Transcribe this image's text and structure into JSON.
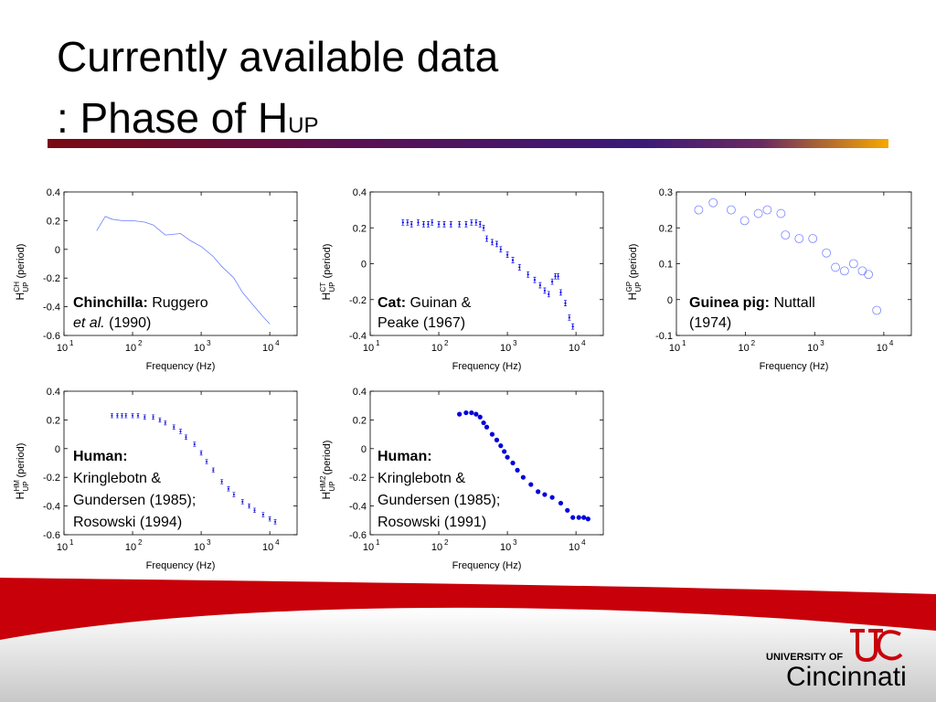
{
  "title": {
    "line1": "Currently available data",
    "line2": ": Phase of H",
    "sub": "UP"
  },
  "footer": {
    "university_of": "UNIVERSITY OF",
    "name": "Cincinnati"
  },
  "chart_data": [
    {
      "type": "line",
      "color": "#6a7cff",
      "log_x": true,
      "xlabel": "Frequency (Hz)",
      "ylabel": {
        "base": "H",
        "sup": "CH",
        "sub": "UP",
        "text": "(period)"
      },
      "xlim": [
        10,
        25000
      ],
      "xticks": [
        {
          "value": 10,
          "label": "10",
          "sup": "1"
        },
        {
          "value": 100,
          "label": "10",
          "sup": "2"
        },
        {
          "value": 1000,
          "label": "10",
          "sup": "3"
        },
        {
          "value": 10000,
          "label": "10",
          "sup": "4"
        }
      ],
      "ylim": [
        -0.6,
        0.4
      ],
      "yticks": [
        -0.6,
        -0.4,
        -0.2,
        0,
        0.2,
        0.4
      ],
      "annotation": [
        [
          {
            "text": "Chinchilla:",
            "bold": true
          },
          {
            "text": " Ruggero"
          }
        ],
        [
          {
            "text": "et al.",
            "italic": true
          },
          {
            "text": " (1990)"
          }
        ]
      ],
      "x": [
        30,
        40,
        50,
        70,
        100,
        150,
        200,
        300,
        500,
        700,
        1000,
        1500,
        2000,
        3000,
        4000,
        6000,
        8000,
        10000
      ],
      "values": [
        0.13,
        0.23,
        0.21,
        0.2,
        0.2,
        0.19,
        0.17,
        0.1,
        0.11,
        0.06,
        0.02,
        -0.05,
        -0.12,
        -0.2,
        -0.3,
        -0.4,
        -0.47,
        -0.52
      ]
    },
    {
      "type": "scatter",
      "marker": "errorbar",
      "color": "#0000ee",
      "log_x": true,
      "xlabel": "Frequency (Hz)",
      "ylabel": {
        "base": "H",
        "sup": "CT",
        "sub": "UP",
        "text": "(period)"
      },
      "xlim": [
        10,
        25000
      ],
      "xticks": [
        {
          "value": 10,
          "label": "10",
          "sup": "1"
        },
        {
          "value": 100,
          "label": "10",
          "sup": "2"
        },
        {
          "value": 1000,
          "label": "10",
          "sup": "3"
        },
        {
          "value": 10000,
          "label": "10",
          "sup": "4"
        }
      ],
      "ylim": [
        -0.4,
        0.4
      ],
      "yticks": [
        -0.4,
        -0.2,
        0,
        0.2,
        0.4
      ],
      "annotation": [
        [
          {
            "text": "Cat:",
            "bold": true
          },
          {
            "text": " Guinan &"
          }
        ],
        [
          {
            "text": "Peake (1967)"
          }
        ]
      ],
      "x": [
        30,
        35,
        40,
        50,
        60,
        70,
        80,
        100,
        120,
        150,
        200,
        250,
        300,
        350,
        400,
        450,
        500,
        600,
        700,
        800,
        1000,
        1200,
        1500,
        2000,
        2500,
        3000,
        3500,
        4000,
        4500,
        5000,
        5500,
        6000,
        7000,
        8000,
        9000
      ],
      "values": [
        0.23,
        0.23,
        0.22,
        0.23,
        0.22,
        0.22,
        0.23,
        0.22,
        0.22,
        0.22,
        0.22,
        0.22,
        0.23,
        0.23,
        0.22,
        0.2,
        0.14,
        0.12,
        0.11,
        0.08,
        0.05,
        0.02,
        -0.02,
        -0.06,
        -0.09,
        -0.12,
        -0.15,
        -0.17,
        -0.1,
        -0.07,
        -0.07,
        -0.16,
        -0.22,
        -0.3,
        -0.35
      ],
      "errors": [
        0.015,
        0.015,
        0.015,
        0.015,
        0.015,
        0.015,
        0.015,
        0.015,
        0.015,
        0.015,
        0.015,
        0.015,
        0.015,
        0.015,
        0.015,
        0.015,
        0.015,
        0.015,
        0.015,
        0.015,
        0.015,
        0.015,
        0.015,
        0.015,
        0.015,
        0.015,
        0.015,
        0.015,
        0.015,
        0.015,
        0.015,
        0.015,
        0.015,
        0.015,
        0.015
      ]
    },
    {
      "type": "scatter",
      "marker": "circle-open",
      "color": "#7a86ff",
      "log_x": true,
      "xlabel": "Frequency (Hz)",
      "ylabel": {
        "base": "H",
        "sup": "GP",
        "sub": "UP",
        "text": "(period)"
      },
      "xlim": [
        10,
        25000
      ],
      "xticks": [
        {
          "value": 10,
          "label": "10",
          "sup": "1"
        },
        {
          "value": 100,
          "label": "10",
          "sup": "2"
        },
        {
          "value": 1000,
          "label": "10",
          "sup": "3"
        },
        {
          "value": 10000,
          "label": "10",
          "sup": "4"
        }
      ],
      "ylim": [
        -0.1,
        0.3
      ],
      "yticks": [
        -0.1,
        0,
        0.1,
        0.2,
        0.3
      ],
      "annotation": [
        [
          {
            "text": "Guinea pig:",
            "bold": true
          },
          {
            "text": " Nuttall"
          }
        ],
        [
          {
            "text": "(1974)"
          }
        ]
      ],
      "x": [
        21,
        34,
        62,
        97,
        153,
        206,
        325,
        378,
        596,
        939,
        1480,
        2000,
        2700,
        3650,
        4900,
        6000,
        7900
      ],
      "values": [
        0.25,
        0.27,
        0.25,
        0.22,
        0.24,
        0.25,
        0.24,
        0.18,
        0.17,
        0.17,
        0.13,
        0.09,
        0.08,
        0.1,
        0.08,
        0.07,
        -0.03
      ]
    },
    {
      "type": "scatter",
      "marker": "errorbar",
      "color": "#2222dd",
      "log_x": true,
      "xlabel": "Frequency (Hz)",
      "ylabel": {
        "base": "H",
        "sup": "HM",
        "sub": "UP",
        "text": "(period)"
      },
      "xlim": [
        10,
        25000
      ],
      "xticks": [
        {
          "value": 10,
          "label": "10",
          "sup": "1"
        },
        {
          "value": 100,
          "label": "10",
          "sup": "2"
        },
        {
          "value": 1000,
          "label": "10",
          "sup": "3"
        },
        {
          "value": 10000,
          "label": "10",
          "sup": "4"
        }
      ],
      "ylim": [
        -0.6,
        0.4
      ],
      "yticks": [
        -0.6,
        -0.4,
        -0.2,
        0,
        0.2,
        0.4
      ],
      "annotation": [
        [
          {
            "text": "Human:",
            "bold": true
          }
        ],
        [
          {
            "text": "Kringlebotn &"
          }
        ],
        [
          {
            "text": "Gundersen (1985);"
          }
        ],
        [
          {
            "text": "Rosowski (1994)"
          }
        ]
      ],
      "x": [
        50,
        60,
        70,
        80,
        100,
        120,
        150,
        200,
        250,
        300,
        400,
        500,
        600,
        800,
        1000,
        1200,
        1500,
        2000,
        2500,
        3000,
        4000,
        5000,
        6000,
        8000,
        10000,
        12000
      ],
      "values": [
        0.23,
        0.23,
        0.23,
        0.23,
        0.23,
        0.23,
        0.22,
        0.22,
        0.2,
        0.18,
        0.15,
        0.12,
        0.08,
        0.03,
        -0.03,
        -0.09,
        -0.15,
        -0.23,
        -0.28,
        -0.32,
        -0.37,
        -0.4,
        -0.43,
        -0.46,
        -0.49,
        -0.51
      ],
      "errors": [
        0.015,
        0.015,
        0.015,
        0.015,
        0.015,
        0.015,
        0.015,
        0.015,
        0.015,
        0.015,
        0.015,
        0.015,
        0.015,
        0.015,
        0.015,
        0.015,
        0.015,
        0.015,
        0.015,
        0.015,
        0.015,
        0.015,
        0.015,
        0.015,
        0.015,
        0.015
      ]
    },
    {
      "type": "scatter",
      "marker": "dot",
      "color": "#0000dd",
      "log_x": true,
      "xlabel": "Frequency (Hz)",
      "ylabel": {
        "base": "H",
        "sup": "HM2",
        "sub": "UP",
        "text": "(period)"
      },
      "xlim": [
        10,
        25000
      ],
      "xticks": [
        {
          "value": 10,
          "label": "10",
          "sup": "1"
        },
        {
          "value": 100,
          "label": "10",
          "sup": "2"
        },
        {
          "value": 1000,
          "label": "10",
          "sup": "3"
        },
        {
          "value": 10000,
          "label": "10",
          "sup": "4"
        }
      ],
      "ylim": [
        -0.6,
        0.4
      ],
      "yticks": [
        -0.6,
        -0.4,
        -0.2,
        0,
        0.2,
        0.4
      ],
      "annotation": [
        [
          {
            "text": "Human:",
            "bold": true
          }
        ],
        [
          {
            "text": "Kringlebotn &"
          }
        ],
        [
          {
            "text": "Gundersen (1985);"
          }
        ],
        [
          {
            "text": "Rosowski (1991)"
          }
        ]
      ],
      "x": [
        200,
        250,
        300,
        350,
        400,
        450,
        500,
        600,
        700,
        800,
        900,
        1000,
        1200,
        1400,
        1700,
        2200,
        2800,
        3500,
        4500,
        6000,
        7500,
        9000,
        11000,
        13000,
        15000
      ],
      "values": [
        0.24,
        0.25,
        0.25,
        0.24,
        0.22,
        0.18,
        0.15,
        0.1,
        0.06,
        0.02,
        -0.02,
        -0.06,
        -0.1,
        -0.15,
        -0.2,
        -0.25,
        -0.3,
        -0.32,
        -0.34,
        -0.38,
        -0.43,
        -0.48,
        -0.48,
        -0.48,
        -0.49
      ]
    }
  ]
}
